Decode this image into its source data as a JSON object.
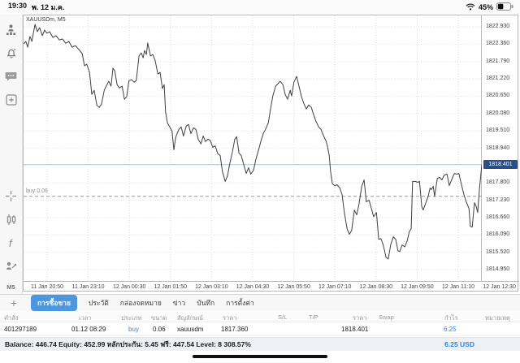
{
  "status_bar": {
    "time": "19:30",
    "date": "พ. 12 ม.ค.",
    "battery_pct": "45%"
  },
  "sidebar": {
    "icons": [
      "trader-icon",
      "alerts-icon",
      "chat-icon",
      "new-order-icon",
      "crosshair-icon",
      "candles-icon",
      "indicators-icon",
      "objects-icon"
    ],
    "timeframe": "M5"
  },
  "chart_data": {
    "type": "line",
    "symbol_label": "XAUUSDm, M5",
    "ylim": [
      1814.578,
      1823.304
    ],
    "y_ticks": [
      "1822.930",
      "1822.360",
      "1821.790",
      "1821.220",
      "1820.650",
      "1820.080",
      "1819.510",
      "1818.940",
      "1817.800",
      "1817.230",
      "1816.660",
      "1816.090",
      "1815.520",
      "1814.950"
    ],
    "x_labels": [
      "11 Jan 20:50",
      "11 Jan 23:10",
      "12 Jan 00:30",
      "12 Jan 01:50",
      "12 Jan 03:10",
      "12 Jan 04:30",
      "12 Jan 05:50",
      "12 Jan 07:10",
      "12 Jan 08:30",
      "12 Jan 09:50",
      "12 Jan 11:10",
      "12 Jan 12:30"
    ],
    "current_price": "1818.401",
    "current_price_value": 1818.401,
    "position_line": {
      "label": "buy 0.06",
      "price": 1817.36
    },
    "grid": true,
    "legend": "none",
    "series": [
      [
        0,
        1822.37
      ],
      [
        0.005,
        1822.45
      ],
      [
        0.009,
        1822.26
      ],
      [
        0.014,
        1822.61
      ],
      [
        0.018,
        1822.45
      ],
      [
        0.025,
        1823.01
      ],
      [
        0.03,
        1822.77
      ],
      [
        0.035,
        1822.9
      ],
      [
        0.041,
        1822.64
      ],
      [
        0.046,
        1822.82
      ],
      [
        0.051,
        1822.72
      ],
      [
        0.057,
        1822.77
      ],
      [
        0.064,
        1822.58
      ],
      [
        0.071,
        1822.64
      ],
      [
        0.078,
        1822.5
      ],
      [
        0.085,
        1822.53
      ],
      [
        0.092,
        1822.39
      ],
      [
        0.099,
        1822.45
      ],
      [
        0.106,
        1822.26
      ],
      [
        0.113,
        1822.31
      ],
      [
        0.121,
        1822.18
      ],
      [
        0.128,
        1822.05
      ],
      [
        0.133,
        1821.65
      ],
      [
        0.138,
        1821.7
      ],
      [
        0.144,
        1821.43
      ],
      [
        0.149,
        1820.71
      ],
      [
        0.154,
        1820.84
      ],
      [
        0.16,
        1820.36
      ],
      [
        0.165,
        1820.28
      ],
      [
        0.17,
        1820.39
      ],
      [
        0.176,
        1820.84
      ],
      [
        0.181,
        1821.0
      ],
      [
        0.186,
        1821.14
      ],
      [
        0.191,
        1820.98
      ],
      [
        0.195,
        1821.57
      ],
      [
        0.199,
        1821.49
      ],
      [
        0.204,
        1821.03
      ],
      [
        0.209,
        1820.92
      ],
      [
        0.215,
        1820.98
      ],
      [
        0.22,
        1820.55
      ],
      [
        0.225,
        1820.63
      ],
      [
        0.23,
        1821.16
      ],
      [
        0.236,
        1821.19
      ],
      [
        0.241,
        1821.11
      ],
      [
        0.246,
        1821.16
      ],
      [
        0.252,
        1821.97
      ],
      [
        0.257,
        1822.07
      ],
      [
        0.261,
        1821.91
      ],
      [
        0.264,
        1822.15
      ],
      [
        0.268,
        1822.02
      ],
      [
        0.271,
        1822.4
      ],
      [
        0.277,
        1821.97
      ],
      [
        0.282,
        1822.02
      ],
      [
        0.287,
        1821.83
      ],
      [
        0.293,
        1821.38
      ],
      [
        0.298,
        1821.43
      ],
      [
        0.303,
        1820.9
      ],
      [
        0.307,
        1821.03
      ],
      [
        0.31,
        1820.12
      ],
      [
        0.314,
        1819.77
      ],
      [
        0.317,
        1819.69
      ],
      [
        0.321,
        1819.59
      ],
      [
        0.324,
        1819.51
      ],
      [
        0.328,
        1818.89
      ],
      [
        0.332,
        1819.29
      ],
      [
        0.335,
        1819.42
      ],
      [
        0.339,
        1819.56
      ],
      [
        0.344,
        1819.64
      ],
      [
        0.349,
        1819.34
      ],
      [
        0.355,
        1819.67
      ],
      [
        0.36,
        1819.72
      ],
      [
        0.365,
        1819.42
      ],
      [
        0.371,
        1819.61
      ],
      [
        0.376,
        1819.56
      ],
      [
        0.381,
        1819.24
      ],
      [
        0.387,
        1819.08
      ],
      [
        0.392,
        1819.34
      ],
      [
        0.397,
        1819.16
      ],
      [
        0.403,
        1819.24
      ],
      [
        0.408,
        1819.18
      ],
      [
        0.413,
        1818.97
      ],
      [
        0.418,
        1819.02
      ],
      [
        0.424,
        1818.76
      ],
      [
        0.429,
        1818.7
      ],
      [
        0.434,
        1818.17
      ],
      [
        0.44,
        1817.85
      ],
      [
        0.445,
        1818.03
      ],
      [
        0.45,
        1818.43
      ],
      [
        0.456,
        1818.84
      ],
      [
        0.461,
        1819.24
      ],
      [
        0.465,
        1819.32
      ],
      [
        0.47,
        1818.78
      ],
      [
        0.475,
        1818.7
      ],
      [
        0.48,
        1818.43
      ],
      [
        0.486,
        1818.11
      ],
      [
        0.491,
        1818.3
      ],
      [
        0.496,
        1818.09
      ],
      [
        0.502,
        1818.22
      ],
      [
        0.507,
        1818.57
      ],
      [
        0.512,
        1818.84
      ],
      [
        0.518,
        1819.18
      ],
      [
        0.523,
        1819.42
      ],
      [
        0.528,
        1819.56
      ],
      [
        0.534,
        1819.77
      ],
      [
        0.539,
        1820.23
      ],
      [
        0.544,
        1820.66
      ],
      [
        0.55,
        1820.98
      ],
      [
        0.555,
        1821.06
      ],
      [
        0.56,
        1821.14
      ],
      [
        0.566,
        1821.03
      ],
      [
        0.571,
        1820.71
      ],
      [
        0.576,
        1820.55
      ],
      [
        0.582,
        1820.84
      ],
      [
        0.585,
        1820.66
      ],
      [
        0.59,
        1821.11
      ],
      [
        0.596,
        1821.3
      ],
      [
        0.601,
        1820.98
      ],
      [
        0.606,
        1820.66
      ],
      [
        0.612,
        1820.39
      ],
      [
        0.617,
        1820.23
      ],
      [
        0.622,
        1820.36
      ],
      [
        0.628,
        1820.28
      ],
      [
        0.633,
        1820.04
      ],
      [
        0.638,
        1819.83
      ],
      [
        0.644,
        1819.64
      ],
      [
        0.649,
        1819.56
      ],
      [
        0.654,
        1819.37
      ],
      [
        0.66,
        1819.18
      ],
      [
        0.663,
        1819.02
      ],
      [
        0.667,
        1818.7
      ],
      [
        0.67,
        1818.17
      ],
      [
        0.674,
        1817.77
      ],
      [
        0.679,
        1817.71
      ],
      [
        0.684,
        1817.74
      ],
      [
        0.69,
        1817.63
      ],
      [
        0.695,
        1817.42
      ],
      [
        0.7,
        1816.83
      ],
      [
        0.706,
        1816.29
      ],
      [
        0.711,
        1816.11
      ],
      [
        0.716,
        1816.24
      ],
      [
        0.722,
        1816.91
      ],
      [
        0.727,
        1816.75
      ],
      [
        0.732,
        1817.1
      ],
      [
        0.738,
        1817.69
      ],
      [
        0.743,
        1817.9
      ],
      [
        0.748,
        1817.18
      ],
      [
        0.754,
        1817.23
      ],
      [
        0.759,
        1816.96
      ],
      [
        0.764,
        1816.69
      ],
      [
        0.77,
        1816.83
      ],
      [
        0.775,
        1815.95
      ],
      [
        0.78,
        1815.97
      ],
      [
        0.785,
        1815.76
      ],
      [
        0.791,
        1815.36
      ],
      [
        0.796,
        1815.3
      ],
      [
        0.801,
        1815.76
      ],
      [
        0.807,
        1816.03
      ],
      [
        0.812,
        1815.95
      ],
      [
        0.817,
        1815.57
      ],
      [
        0.821,
        1815.54
      ],
      [
        0.826,
        1815.76
      ],
      [
        0.832,
        1815.7
      ],
      [
        0.837,
        1815.89
      ],
      [
        0.842,
        1816.21
      ],
      [
        0.846,
        1816.29
      ],
      [
        0.849,
        1817.85
      ],
      [
        0.855,
        1817.85
      ],
      [
        0.86,
        1817.82
      ],
      [
        0.864,
        1817.85
      ],
      [
        0.869,
        1817.02
      ],
      [
        0.872,
        1816.91
      ],
      [
        0.878,
        1817.15
      ],
      [
        0.883,
        1817.36
      ],
      [
        0.887,
        1817.63
      ],
      [
        0.89,
        1817.58
      ],
      [
        0.894,
        1817.69
      ],
      [
        0.897,
        1817.36
      ],
      [
        0.903,
        1817.95
      ],
      [
        0.908,
        1817.98
      ],
      [
        0.913,
        1817.9
      ],
      [
        0.918,
        1818.06
      ],
      [
        0.924,
        1818.09
      ],
      [
        0.929,
        1817.71
      ],
      [
        0.934,
        1817.9
      ],
      [
        0.94,
        1818.11
      ],
      [
        0.945,
        1818.09
      ],
      [
        0.95,
        1818.11
      ],
      [
        0.956,
        1817.71
      ],
      [
        0.961,
        1817.42
      ],
      [
        0.966,
        1817.18
      ],
      [
        0.972,
        1816.96
      ],
      [
        0.975,
        1816.37
      ],
      [
        0.979,
        1816.35
      ],
      [
        0.984,
        1817.15
      ],
      [
        0.988,
        1817.02
      ],
      [
        0.991,
        1816.83
      ],
      [
        0.995,
        1817.63
      ],
      [
        1,
        1818.4
      ]
    ]
  },
  "tabs": {
    "plus": "+",
    "items": [
      {
        "label": "การซื้อขาย",
        "active": true
      },
      {
        "label": "ประวัติ",
        "active": false
      },
      {
        "label": "กล่องจดหมาย",
        "active": false
      },
      {
        "label": "ข่าว",
        "active": false
      },
      {
        "label": "บันทึก",
        "active": false
      },
      {
        "label": "การตั้งค่า",
        "active": false
      }
    ]
  },
  "orders_table": {
    "headers": [
      "คำสั่ง",
      "เวลา",
      "ประเภท",
      "ขนาด",
      "สัญลักษณ์",
      "ราคา",
      "S/L",
      "T/P",
      "ราคา",
      "Swap",
      "กำไร",
      "หมายเหตุ"
    ],
    "row": {
      "order": "401297189",
      "time": "01.12 08:29",
      "type": "buy",
      "volume": "0.06",
      "symbol": "xauusdm",
      "open_price": "1817.360",
      "sl": "",
      "tp": "",
      "price": "1818.401",
      "swap": "",
      "profit": "6.25",
      "comment": ""
    }
  },
  "account_bar": {
    "summary": "Balance: 446.74 Equity: 452.99 หลักประกัน: 5.45 ฟรี: 447.54 Level: 8 308.57%",
    "profit": "6.25 USD"
  }
}
